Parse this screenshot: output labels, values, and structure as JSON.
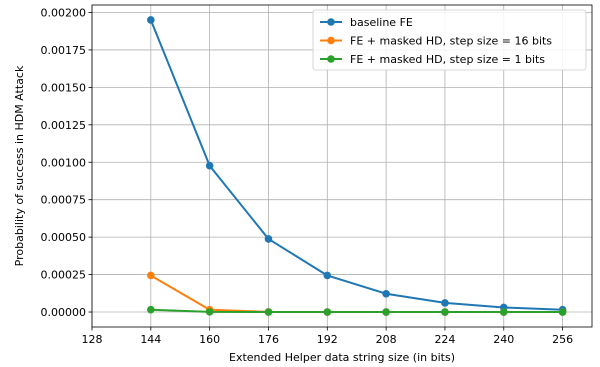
{
  "chart_data": {
    "type": "line",
    "xlabel": "Extended Helper data string size (in bits)",
    "ylabel": "Probability of success in HDM Attack",
    "xlim": [
      128,
      264
    ],
    "ylim": [
      -0.0001,
      0.00205
    ],
    "xticks": [
      128,
      144,
      160,
      176,
      192,
      208,
      224,
      240,
      256
    ],
    "xtick_labels": [
      "128",
      "144",
      "160",
      "176",
      "192",
      "208",
      "224",
      "240",
      "256"
    ],
    "yticks": [
      0,
      0.00025,
      0.0005,
      0.00075,
      0.001,
      0.00125,
      0.0015,
      0.00175,
      0.002
    ],
    "ytick_labels": [
      "0.00000",
      "0.00025",
      "0.00050",
      "0.00075",
      "0.00100",
      "0.00125",
      "0.00150",
      "0.00175",
      "0.00200"
    ],
    "grid": true,
    "legend_position": "top-right",
    "series": [
      {
        "name": "baseline FE",
        "color": "#1f77b4",
        "x": [
          144,
          160,
          176,
          192,
          208,
          224,
          240,
          256
        ],
        "y": [
          0.00195,
          0.000977,
          0.000488,
          0.000244,
          0.000122,
          6.1e-05,
          3.05e-05,
          1.53e-05
        ]
      },
      {
        "name": "FE + masked HD, step size = 16 bits",
        "color": "#ff7f0e",
        "x": [
          144,
          160,
          176,
          192,
          208,
          224,
          240,
          256
        ],
        "y": [
          0.000244,
          1.53e-05,
          1e-06,
          0,
          0,
          0,
          0,
          0
        ]
      },
      {
        "name": "FE + masked HD, step size = 1 bits",
        "color": "#2ca02c",
        "x": [
          144,
          160,
          176,
          192,
          208,
          224,
          240,
          256
        ],
        "y": [
          1.53e-05,
          1e-06,
          0,
          0,
          0,
          0,
          0,
          0
        ]
      }
    ]
  }
}
